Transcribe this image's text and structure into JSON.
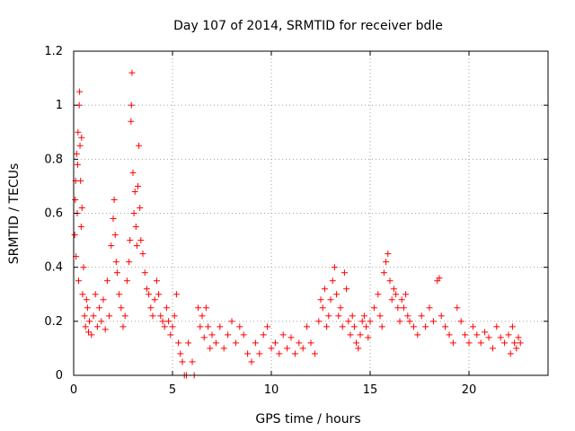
{
  "chart_data": {
    "type": "scatter",
    "title": "Day 107 of 2014, SRMTID for receiver bdle",
    "xlabel": "GPS time / hours",
    "ylabel": "SRMTID / TECUs",
    "xlim": [
      0,
      24
    ],
    "ylim": [
      0,
      1.2
    ],
    "xticks": [
      0,
      5,
      10,
      15,
      20
    ],
    "xtick_labels": [
      "0",
      "5",
      "10",
      "15",
      "20"
    ],
    "yticks": [
      0,
      0.2,
      0.4,
      0.6,
      0.8,
      1,
      1.2
    ],
    "ytick_labels": [
      "0",
      "0.2",
      "0.4",
      "0.6",
      "0.8",
      "1",
      "1.2"
    ],
    "grid": true,
    "marker": "+",
    "series": [
      {
        "name": "SRMTID",
        "color": "#ff0000",
        "points": [
          [
            0.05,
            0.52
          ],
          [
            0.08,
            0.65
          ],
          [
            0.1,
            0.72
          ],
          [
            0.12,
            0.44
          ],
          [
            0.15,
            0.82
          ],
          [
            0.18,
            0.6
          ],
          [
            0.2,
            0.78
          ],
          [
            0.22,
            0.9
          ],
          [
            0.25,
            0.35
          ],
          [
            0.28,
            1.0
          ],
          [
            0.3,
            1.05
          ],
          [
            0.32,
            0.85
          ],
          [
            0.35,
            0.72
          ],
          [
            0.38,
            0.55
          ],
          [
            0.4,
            0.88
          ],
          [
            0.42,
            0.62
          ],
          [
            0.45,
            0.3
          ],
          [
            0.5,
            0.4
          ],
          [
            0.55,
            0.22
          ],
          [
            0.6,
            0.18
          ],
          [
            0.65,
            0.28
          ],
          [
            0.7,
            0.25
          ],
          [
            0.75,
            0.16
          ],
          [
            0.8,
            0.2
          ],
          [
            0.9,
            0.15
          ],
          [
            1.0,
            0.22
          ],
          [
            1.1,
            0.3
          ],
          [
            1.2,
            0.18
          ],
          [
            1.3,
            0.25
          ],
          [
            1.4,
            0.2
          ],
          [
            1.5,
            0.28
          ],
          [
            1.6,
            0.17
          ],
          [
            1.7,
            0.35
          ],
          [
            1.8,
            0.22
          ],
          [
            1.9,
            0.48
          ],
          [
            2.0,
            0.58
          ],
          [
            2.05,
            0.65
          ],
          [
            2.1,
            0.52
          ],
          [
            2.15,
            0.42
          ],
          [
            2.2,
            0.38
          ],
          [
            2.3,
            0.3
          ],
          [
            2.4,
            0.25
          ],
          [
            2.5,
            0.18
          ],
          [
            2.6,
            0.22
          ],
          [
            2.7,
            0.35
          ],
          [
            2.8,
            0.42
          ],
          [
            2.85,
            0.5
          ],
          [
            2.9,
            0.94
          ],
          [
            2.92,
            1.0
          ],
          [
            2.95,
            1.12
          ],
          [
            3.0,
            0.75
          ],
          [
            3.05,
            0.6
          ],
          [
            3.1,
            0.68
          ],
          [
            3.15,
            0.55
          ],
          [
            3.2,
            0.48
          ],
          [
            3.25,
            0.7
          ],
          [
            3.3,
            0.85
          ],
          [
            3.35,
            0.62
          ],
          [
            3.4,
            0.5
          ],
          [
            3.5,
            0.45
          ],
          [
            3.6,
            0.38
          ],
          [
            3.7,
            0.32
          ],
          [
            3.8,
            0.3
          ],
          [
            3.9,
            0.25
          ],
          [
            4.0,
            0.22
          ],
          [
            4.1,
            0.28
          ],
          [
            4.2,
            0.35
          ],
          [
            4.3,
            0.3
          ],
          [
            4.4,
            0.22
          ],
          [
            4.5,
            0.2
          ],
          [
            4.6,
            0.18
          ],
          [
            4.7,
            0.25
          ],
          [
            4.8,
            0.2
          ],
          [
            4.9,
            0.15
          ],
          [
            5.0,
            0.18
          ],
          [
            5.1,
            0.22
          ],
          [
            5.2,
            0.3
          ],
          [
            5.3,
            0.12
          ],
          [
            5.4,
            0.08
          ],
          [
            5.5,
            0.05
          ],
          [
            5.6,
            0.0
          ],
          [
            5.7,
            0.0
          ],
          [
            5.8,
            0.12
          ],
          [
            6.0,
            0.05
          ],
          [
            6.1,
            0.0
          ],
          [
            6.3,
            0.25
          ],
          [
            6.4,
            0.18
          ],
          [
            6.5,
            0.22
          ],
          [
            6.6,
            0.14
          ],
          [
            6.7,
            0.25
          ],
          [
            6.8,
            0.18
          ],
          [
            6.9,
            0.1
          ],
          [
            7.0,
            0.15
          ],
          [
            7.2,
            0.12
          ],
          [
            7.4,
            0.18
          ],
          [
            7.6,
            0.1
          ],
          [
            7.8,
            0.15
          ],
          [
            8.0,
            0.2
          ],
          [
            8.2,
            0.12
          ],
          [
            8.4,
            0.18
          ],
          [
            8.6,
            0.15
          ],
          [
            8.8,
            0.08
          ],
          [
            9.0,
            0.05
          ],
          [
            9.2,
            0.12
          ],
          [
            9.4,
            0.08
          ],
          [
            9.6,
            0.15
          ],
          [
            9.8,
            0.18
          ],
          [
            10.0,
            0.1
          ],
          [
            10.2,
            0.12
          ],
          [
            10.4,
            0.08
          ],
          [
            10.6,
            0.15
          ],
          [
            10.8,
            0.1
          ],
          [
            11.0,
            0.14
          ],
          [
            11.2,
            0.08
          ],
          [
            11.4,
            0.12
          ],
          [
            11.6,
            0.1
          ],
          [
            11.8,
            0.18
          ],
          [
            12.0,
            0.12
          ],
          [
            12.2,
            0.08
          ],
          [
            12.4,
            0.2
          ],
          [
            12.5,
            0.28
          ],
          [
            12.6,
            0.25
          ],
          [
            12.7,
            0.32
          ],
          [
            12.8,
            0.18
          ],
          [
            12.9,
            0.22
          ],
          [
            13.0,
            0.28
          ],
          [
            13.1,
            0.35
          ],
          [
            13.2,
            0.4
          ],
          [
            13.3,
            0.3
          ],
          [
            13.4,
            0.22
          ],
          [
            13.5,
            0.25
          ],
          [
            13.6,
            0.18
          ],
          [
            13.7,
            0.38
          ],
          [
            13.8,
            0.32
          ],
          [
            13.9,
            0.2
          ],
          [
            14.0,
            0.15
          ],
          [
            14.1,
            0.22
          ],
          [
            14.2,
            0.18
          ],
          [
            14.3,
            0.12
          ],
          [
            14.4,
            0.1
          ],
          [
            14.5,
            0.15
          ],
          [
            14.6,
            0.2
          ],
          [
            14.7,
            0.22
          ],
          [
            14.8,
            0.18
          ],
          [
            14.9,
            0.14
          ],
          [
            15.0,
            0.2
          ],
          [
            15.2,
            0.25
          ],
          [
            15.4,
            0.3
          ],
          [
            15.5,
            0.22
          ],
          [
            15.6,
            0.18
          ],
          [
            15.7,
            0.38
          ],
          [
            15.8,
            0.42
          ],
          [
            15.9,
            0.45
          ],
          [
            16.0,
            0.35
          ],
          [
            16.1,
            0.28
          ],
          [
            16.2,
            0.32
          ],
          [
            16.3,
            0.3
          ],
          [
            16.4,
            0.25
          ],
          [
            16.5,
            0.2
          ],
          [
            16.6,
            0.28
          ],
          [
            16.7,
            0.25
          ],
          [
            16.8,
            0.3
          ],
          [
            16.9,
            0.22
          ],
          [
            17.0,
            0.2
          ],
          [
            17.2,
            0.18
          ],
          [
            17.4,
            0.15
          ],
          [
            17.6,
            0.22
          ],
          [
            17.8,
            0.18
          ],
          [
            18.0,
            0.25
          ],
          [
            18.2,
            0.2
          ],
          [
            18.4,
            0.35
          ],
          [
            18.5,
            0.36
          ],
          [
            18.6,
            0.22
          ],
          [
            18.8,
            0.18
          ],
          [
            19.0,
            0.15
          ],
          [
            19.2,
            0.12
          ],
          [
            19.4,
            0.25
          ],
          [
            19.6,
            0.2
          ],
          [
            19.8,
            0.15
          ],
          [
            20.0,
            0.12
          ],
          [
            20.2,
            0.18
          ],
          [
            20.4,
            0.15
          ],
          [
            20.6,
            0.12
          ],
          [
            20.8,
            0.16
          ],
          [
            21.0,
            0.14
          ],
          [
            21.2,
            0.1
          ],
          [
            21.4,
            0.18
          ],
          [
            21.6,
            0.14
          ],
          [
            21.8,
            0.12
          ],
          [
            22.0,
            0.15
          ],
          [
            22.1,
            0.08
          ],
          [
            22.2,
            0.18
          ],
          [
            22.3,
            0.12
          ],
          [
            22.4,
            0.1
          ],
          [
            22.5,
            0.14
          ],
          [
            22.6,
            0.12
          ]
        ]
      }
    ]
  }
}
